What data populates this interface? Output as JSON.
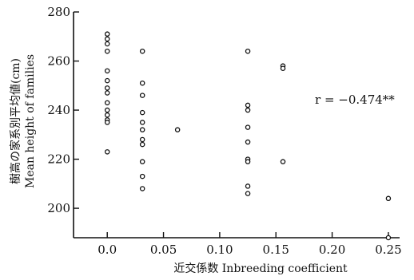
{
  "chart_data": {
    "type": "scatter",
    "title": "",
    "xlabel": "近交係数 Inbreeding coefficient",
    "ylabel_jp": "樹高の家系別平均値(cm)",
    "ylabel_en": "Mean height of families",
    "xlim": [
      -0.03,
      0.26
    ],
    "ylim": [
      188,
      280
    ],
    "x_ticks": [
      0.0,
      0.05,
      0.1,
      0.15,
      0.2,
      0.25
    ],
    "x_tick_labels": [
      "0.0",
      "0.05",
      "0.10",
      "0.15",
      "0.20",
      "0.25"
    ],
    "y_ticks": [
      200,
      220,
      240,
      260,
      280
    ],
    "y_tick_labels": [
      "200",
      "220",
      "240",
      "260",
      "280"
    ],
    "grid": false,
    "annotation": "r = −0.474**",
    "points": [
      {
        "x": 0.0,
        "y": 271
      },
      {
        "x": 0.0,
        "y": 269
      },
      {
        "x": 0.0,
        "y": 267
      },
      {
        "x": 0.0,
        "y": 264
      },
      {
        "x": 0.0,
        "y": 256
      },
      {
        "x": 0.0,
        "y": 252
      },
      {
        "x": 0.0,
        "y": 249
      },
      {
        "x": 0.0,
        "y": 247
      },
      {
        "x": 0.0,
        "y": 243
      },
      {
        "x": 0.0,
        "y": 240
      },
      {
        "x": 0.0,
        "y": 238
      },
      {
        "x": 0.0,
        "y": 236
      },
      {
        "x": 0.0,
        "y": 235
      },
      {
        "x": 0.0,
        "y": 223
      },
      {
        "x": 0.03125,
        "y": 264
      },
      {
        "x": 0.03125,
        "y": 251
      },
      {
        "x": 0.03125,
        "y": 246
      },
      {
        "x": 0.03125,
        "y": 239
      },
      {
        "x": 0.03125,
        "y": 235
      },
      {
        "x": 0.03125,
        "y": 232
      },
      {
        "x": 0.03125,
        "y": 228
      },
      {
        "x": 0.03125,
        "y": 226
      },
      {
        "x": 0.03125,
        "y": 219
      },
      {
        "x": 0.03125,
        "y": 213
      },
      {
        "x": 0.03125,
        "y": 208
      },
      {
        "x": 0.0625,
        "y": 232
      },
      {
        "x": 0.125,
        "y": 264
      },
      {
        "x": 0.125,
        "y": 242
      },
      {
        "x": 0.125,
        "y": 240
      },
      {
        "x": 0.125,
        "y": 233
      },
      {
        "x": 0.125,
        "y": 227
      },
      {
        "x": 0.125,
        "y": 220
      },
      {
        "x": 0.125,
        "y": 219
      },
      {
        "x": 0.125,
        "y": 209
      },
      {
        "x": 0.125,
        "y": 206
      },
      {
        "x": 0.15625,
        "y": 258
      },
      {
        "x": 0.15625,
        "y": 257
      },
      {
        "x": 0.15625,
        "y": 219
      },
      {
        "x": 0.25,
        "y": 204
      },
      {
        "x": 0.25,
        "y": 188
      }
    ]
  }
}
